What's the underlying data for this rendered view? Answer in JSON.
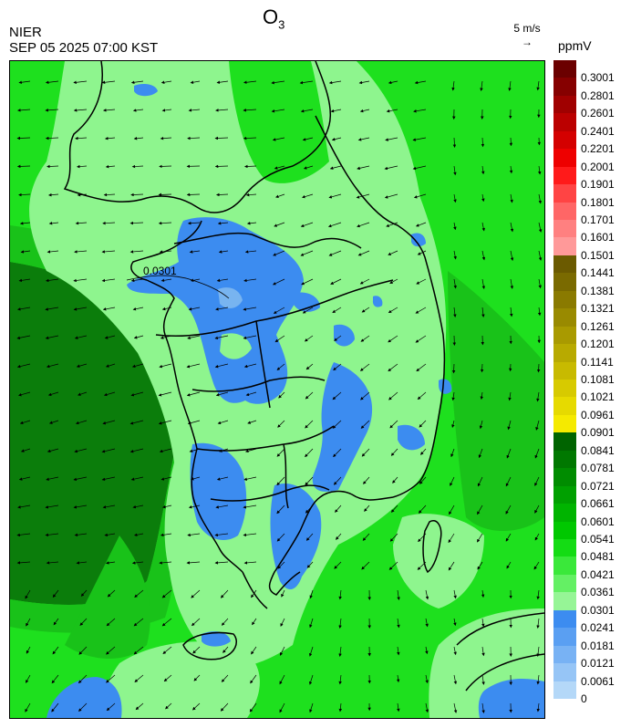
{
  "header": {
    "title_main": "O",
    "title_sub": "3",
    "org": "NIER",
    "timestamp": "SEP 05 2025 07:00 KST",
    "wind_ref_label": "5 m/s",
    "wind_ref_arrow": "→",
    "unit": "ppmV"
  },
  "map": {
    "contour_label": "0.0301",
    "colors": {
      "deep_green": "#0b7d0b",
      "mid_green": "#19c219",
      "bright_green": "#1ee01e",
      "light_green": "#8ef58e",
      "blue": "#3c8cf0",
      "light_blue": "#78b4f0"
    }
  },
  "legend": {
    "labels": [
      "0.3001",
      "0.2801",
      "0.2601",
      "0.2401",
      "0.2201",
      "0.2001",
      "0.1901",
      "0.1801",
      "0.1701",
      "0.1601",
      "0.1501",
      "0.1441",
      "0.1381",
      "0.1321",
      "0.1261",
      "0.1201",
      "0.1141",
      "0.1081",
      "0.1021",
      "0.0961",
      "0.0901",
      "0.0841",
      "0.0781",
      "0.0721",
      "0.0661",
      "0.0601",
      "0.0541",
      "0.0481",
      "0.0421",
      "0.0361",
      "0.0301",
      "0.0241",
      "0.0181",
      "0.0121",
      "0.0061",
      "0"
    ],
    "colors": [
      "#6b0000",
      "#860000",
      "#a00000",
      "#bb0000",
      "#d40000",
      "#ee0000",
      "#ff1a1a",
      "#ff4444",
      "#ff6666",
      "#ff8080",
      "#ff9999",
      "#6b5a00",
      "#7a6a00",
      "#8a7a00",
      "#998a00",
      "#a99a00",
      "#b8aa00",
      "#c8ba00",
      "#d7ca00",
      "#e6da00",
      "#f5ea00",
      "#006400",
      "#007800",
      "#008c00",
      "#00a000",
      "#00b400",
      "#00c800",
      "#14dc14",
      "#3ae83a",
      "#64f064",
      "#96f596",
      "#3c8cf0",
      "#5a9ff2",
      "#78b2f4",
      "#96c5f6",
      "#b4d8f8"
    ]
  }
}
